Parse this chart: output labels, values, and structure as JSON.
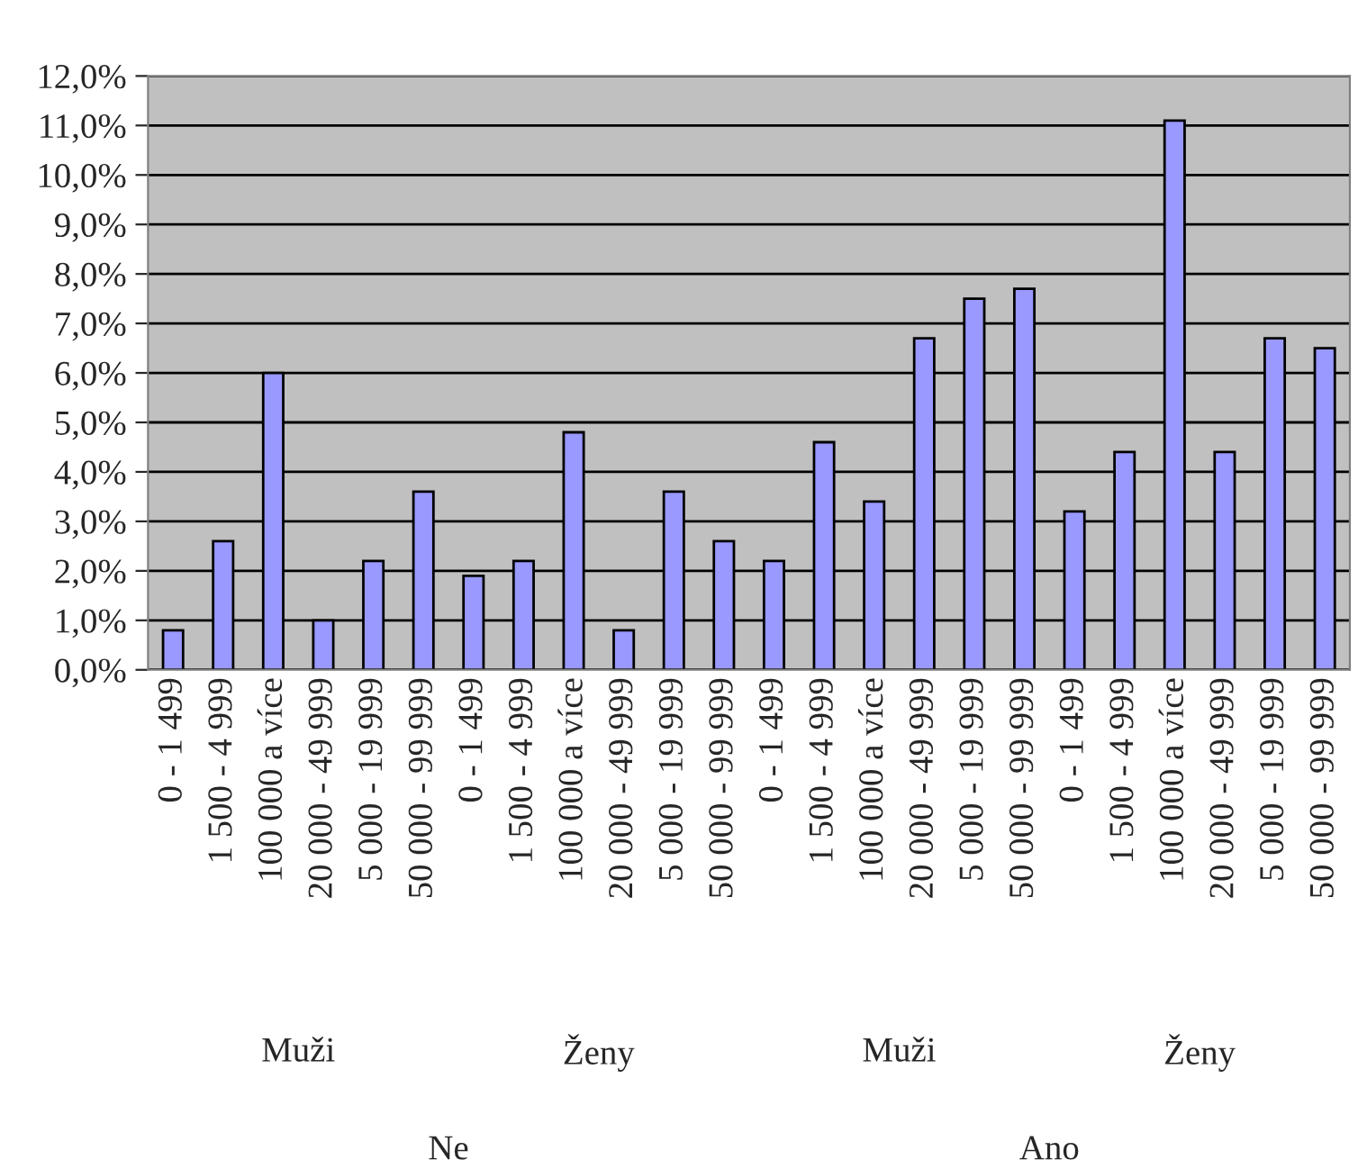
{
  "chart_data": {
    "type": "bar",
    "categories": [
      "0 - 1 499",
      "1 500 - 4 999",
      "100 000 a více",
      "20 000 - 49 999",
      "5 000 - 19 999",
      "50 000 - 99 999",
      "0 - 1 499",
      "1 500 - 4 999",
      "100 000 a více",
      "20 000 - 49 999",
      "5 000 - 19 999",
      "50 000 - 99 999",
      "0 - 1 499",
      "1 500 - 4 999",
      "100 000 a více",
      "20 000 - 49 999",
      "5 000 - 19 999",
      "50 000 - 99 999",
      "0 - 1 499",
      "1 500 - 4 999",
      "100 000 a více",
      "20 000 - 49 999",
      "5 000 - 19 999",
      "50 000 - 99 999"
    ],
    "values": [
      0.8,
      2.6,
      6.0,
      1.0,
      2.2,
      3.6,
      1.9,
      2.2,
      4.8,
      0.8,
      3.6,
      2.6,
      2.2,
      4.6,
      3.4,
      6.7,
      7.5,
      7.7,
      3.2,
      4.4,
      11.1,
      4.4,
      6.7,
      6.5
    ],
    "color": "#9999ff",
    "ylim": [
      0,
      12
    ],
    "yticks": [
      {
        "value": 0,
        "label": "0,0%"
      },
      {
        "value": 1,
        "label": "1,0%"
      },
      {
        "value": 2,
        "label": "2,0%"
      },
      {
        "value": 3,
        "label": "3,0%"
      },
      {
        "value": 4,
        "label": "4,0%"
      },
      {
        "value": 5,
        "label": "5,0%"
      },
      {
        "value": 6,
        "label": "6,0%"
      },
      {
        "value": 7,
        "label": "7,0%"
      },
      {
        "value": 8,
        "label": "8,0%"
      },
      {
        "value": 9,
        "label": "9,0%"
      },
      {
        "value": 10,
        "label": "10,0%"
      },
      {
        "value": 11,
        "label": "11,0%"
      },
      {
        "value": 12,
        "label": "12,0%"
      }
    ],
    "grid": "y",
    "annotations": [
      "Muži",
      "Ženy",
      "Muži",
      "Ženy",
      "Ne",
      "Ano"
    ]
  }
}
